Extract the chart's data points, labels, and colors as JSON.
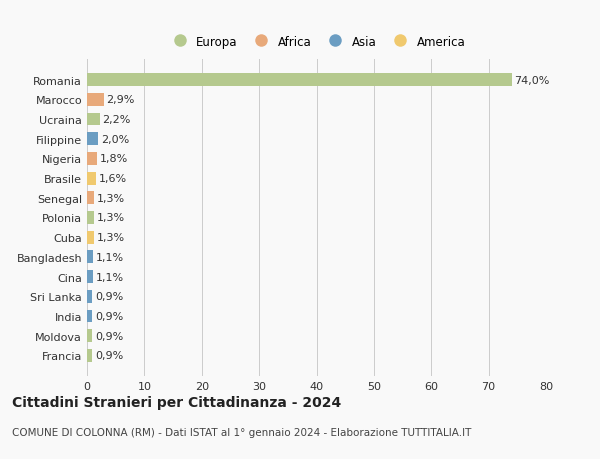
{
  "categories": [
    "Romania",
    "Marocco",
    "Ucraina",
    "Filippine",
    "Nigeria",
    "Brasile",
    "Senegal",
    "Polonia",
    "Cuba",
    "Bangladesh",
    "Cina",
    "Sri Lanka",
    "India",
    "Moldova",
    "Francia"
  ],
  "values": [
    74.0,
    2.9,
    2.2,
    2.0,
    1.8,
    1.6,
    1.3,
    1.3,
    1.3,
    1.1,
    1.1,
    0.9,
    0.9,
    0.9,
    0.9
  ],
  "labels": [
    "74,0%",
    "2,9%",
    "2,2%",
    "2,0%",
    "1,8%",
    "1,6%",
    "1,3%",
    "1,3%",
    "1,3%",
    "1,1%",
    "1,1%",
    "0,9%",
    "0,9%",
    "0,9%",
    "0,9%"
  ],
  "bar_colors": [
    "#b5c98e",
    "#e8a97a",
    "#b5c98e",
    "#6b9dc2",
    "#e8a97a",
    "#f0c96e",
    "#e8a97a",
    "#b5c98e",
    "#f0c96e",
    "#6b9dc2",
    "#6b9dc2",
    "#6b9dc2",
    "#6b9dc2",
    "#b5c98e",
    "#b5c98e"
  ],
  "legend_labels": [
    "Europa",
    "Africa",
    "Asia",
    "America"
  ],
  "legend_colors": [
    "#b5c98e",
    "#e8a97a",
    "#6b9dc2",
    "#f0c96e"
  ],
  "xlim": [
    0,
    80
  ],
  "xticks": [
    0,
    10,
    20,
    30,
    40,
    50,
    60,
    70,
    80
  ],
  "title": "Cittadini Stranieri per Cittadinanza - 2024",
  "subtitle": "COMUNE DI COLONNA (RM) - Dati ISTAT al 1° gennaio 2024 - Elaborazione TUTTITALIA.IT",
  "background_color": "#f9f9f9",
  "grid_color": "#cccccc",
  "bar_height": 0.65,
  "title_fontsize": 10,
  "subtitle_fontsize": 7.5,
  "label_fontsize": 8,
  "tick_fontsize": 8,
  "legend_fontsize": 8.5
}
